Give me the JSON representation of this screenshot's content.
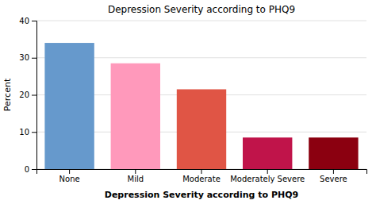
{
  "chart_data": {
    "type": "bar",
    "title": "Depression Severity according to PHQ9",
    "xlabel": "Depression Severity according to PHQ9",
    "ylabel": "Percent",
    "categories": [
      "None",
      "Mild",
      "Moderate",
      "Moderately Severe",
      "Severe"
    ],
    "values": [
      34.0,
      28.5,
      21.5,
      8.5,
      8.5
    ],
    "colors": [
      "#6699CC",
      "#FF99BB",
      "#E05545",
      "#C0144A",
      "#8B0010"
    ],
    "ylim": [
      0,
      40
    ],
    "yticks": [
      0,
      10,
      20,
      30,
      40
    ],
    "grid": true
  }
}
